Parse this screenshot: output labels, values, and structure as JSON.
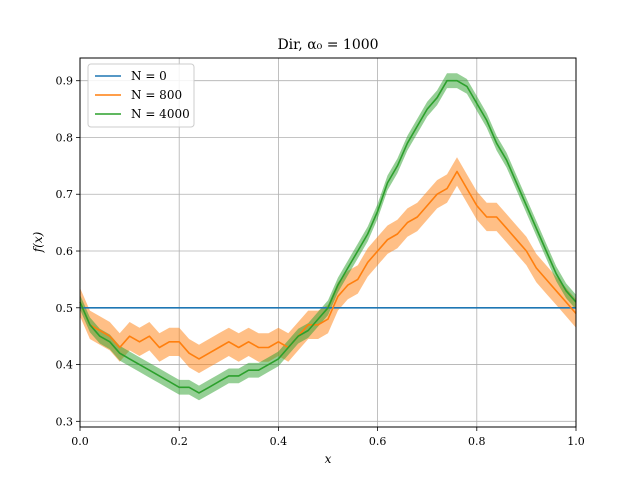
{
  "chart_data": {
    "type": "line",
    "title": "Dir, α₀ = 1000",
    "xlabel": "x",
    "ylabel": "f(x)",
    "xlim": [
      0.0,
      1.0
    ],
    "ylim": [
      0.29,
      0.94
    ],
    "xticks": [
      0.0,
      0.2,
      0.4,
      0.6,
      0.8,
      1.0
    ],
    "xtick_labels": [
      "0.0",
      "0.2",
      "0.4",
      "0.6",
      "0.8",
      "1.0"
    ],
    "yticks": [
      0.3,
      0.4,
      0.5,
      0.6,
      0.7,
      0.8,
      0.9
    ],
    "ytick_labels": [
      "0.3",
      "0.4",
      "0.5",
      "0.6",
      "0.7",
      "0.8",
      "0.9"
    ],
    "grid": true,
    "legend_position": "top-left",
    "series": [
      {
        "name": "N = 0",
        "color": "#1f77b4",
        "band": false,
        "x": [
          0.0,
          1.0
        ],
        "y": [
          0.5,
          0.5
        ]
      },
      {
        "name": "N = 800",
        "color": "#ff7f0e",
        "band": true,
        "band_halfwidth": 0.025,
        "x": [
          0.0,
          0.02,
          0.04,
          0.06,
          0.08,
          0.1,
          0.12,
          0.14,
          0.16,
          0.18,
          0.2,
          0.22,
          0.24,
          0.26,
          0.28,
          0.3,
          0.32,
          0.34,
          0.36,
          0.38,
          0.4,
          0.42,
          0.44,
          0.46,
          0.48,
          0.5,
          0.52,
          0.54,
          0.56,
          0.58,
          0.6,
          0.62,
          0.64,
          0.66,
          0.68,
          0.7,
          0.72,
          0.74,
          0.76,
          0.78,
          0.8,
          0.82,
          0.84,
          0.86,
          0.88,
          0.9,
          0.92,
          0.94,
          0.96,
          0.98,
          1.0
        ],
        "y": [
          0.51,
          0.47,
          0.46,
          0.45,
          0.43,
          0.45,
          0.44,
          0.45,
          0.43,
          0.44,
          0.44,
          0.42,
          0.41,
          0.42,
          0.43,
          0.44,
          0.43,
          0.44,
          0.43,
          0.43,
          0.44,
          0.43,
          0.45,
          0.47,
          0.47,
          0.48,
          0.52,
          0.54,
          0.55,
          0.58,
          0.6,
          0.62,
          0.63,
          0.65,
          0.66,
          0.68,
          0.7,
          0.71,
          0.74,
          0.71,
          0.68,
          0.66,
          0.66,
          0.64,
          0.62,
          0.6,
          0.57,
          0.55,
          0.53,
          0.51,
          0.49
        ]
      },
      {
        "name": "N = 4000",
        "color": "#2ca02c",
        "band": true,
        "band_halfwidth": 0.013,
        "x": [
          0.0,
          0.02,
          0.04,
          0.06,
          0.08,
          0.1,
          0.12,
          0.14,
          0.16,
          0.18,
          0.2,
          0.22,
          0.24,
          0.26,
          0.28,
          0.3,
          0.32,
          0.34,
          0.36,
          0.38,
          0.4,
          0.42,
          0.44,
          0.46,
          0.48,
          0.5,
          0.52,
          0.54,
          0.56,
          0.58,
          0.6,
          0.62,
          0.64,
          0.66,
          0.68,
          0.7,
          0.72,
          0.74,
          0.76,
          0.78,
          0.8,
          0.82,
          0.84,
          0.86,
          0.88,
          0.9,
          0.92,
          0.94,
          0.96,
          0.98,
          1.0
        ],
        "y": [
          0.51,
          0.47,
          0.45,
          0.44,
          0.42,
          0.41,
          0.4,
          0.39,
          0.38,
          0.37,
          0.36,
          0.36,
          0.35,
          0.36,
          0.37,
          0.38,
          0.38,
          0.39,
          0.39,
          0.4,
          0.41,
          0.43,
          0.45,
          0.46,
          0.48,
          0.5,
          0.54,
          0.57,
          0.6,
          0.63,
          0.67,
          0.72,
          0.75,
          0.79,
          0.82,
          0.85,
          0.87,
          0.9,
          0.9,
          0.89,
          0.86,
          0.83,
          0.79,
          0.76,
          0.72,
          0.68,
          0.64,
          0.6,
          0.56,
          0.53,
          0.51
        ]
      }
    ]
  }
}
